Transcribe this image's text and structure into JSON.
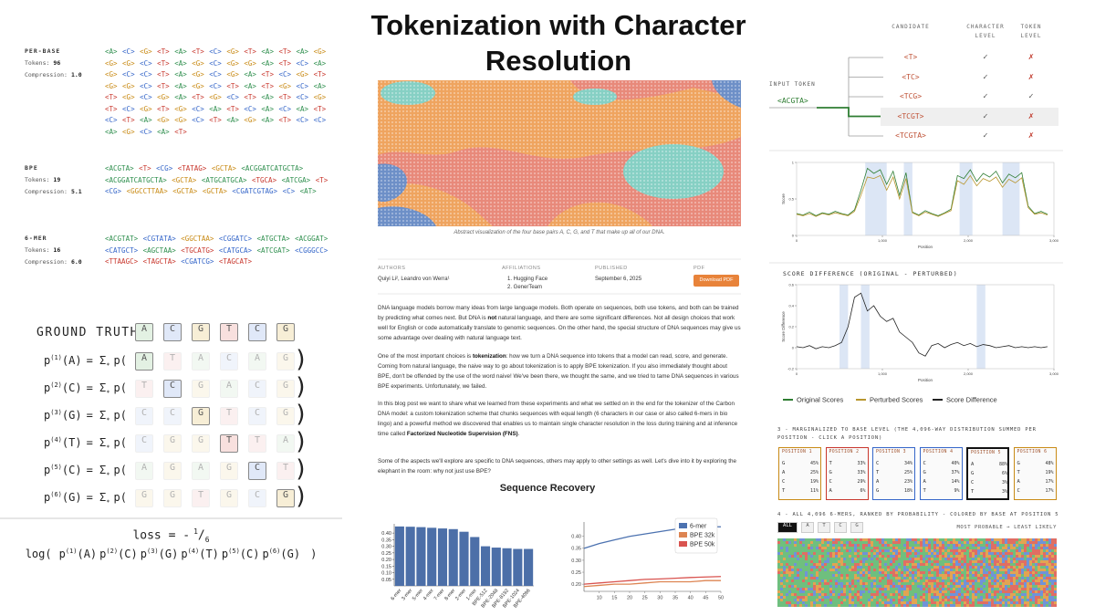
{
  "left": {
    "schemes": [
      {
        "name": "PER-BASE",
        "tokens_label": "Tokens:",
        "tokens": "96",
        "compression_label": "Compression:",
        "compression": "1.0",
        "rows": [
          [
            "<A>",
            "<C>",
            "<G>",
            "<T>",
            "<A>",
            "<T>",
            "<C>",
            "<G>",
            "<T>",
            "<A>",
            "<T>",
            "<A>",
            "<G>"
          ],
          [
            "<G>",
            "<G>",
            "<C>",
            "<T>",
            "<A>",
            "<G>",
            "<C>",
            "<G>",
            "<G>",
            "<A>",
            "<T>",
            "<C>",
            "<A>"
          ],
          [
            "<G>",
            "<C>",
            "<C>",
            "<T>",
            "<A>",
            "<G>",
            "<C>",
            "<G>",
            "<A>",
            "<T>",
            "<C>",
            "<G>",
            "<T>"
          ],
          [
            "<G>",
            "<G>",
            "<C>",
            "<T>",
            "<A>",
            "<G>",
            "<C>",
            "<T>",
            "<A>",
            "<T>",
            "<G>",
            "<C>",
            "<A>"
          ],
          [
            "<T>",
            "<G>",
            "<C>",
            "<G>",
            "<A>",
            "<T>",
            "<G>",
            "<C>",
            "<T>",
            "<A>",
            "<T>",
            "<C>",
            "<G>"
          ],
          [
            "<T>",
            "<C>",
            "<G>",
            "<T>",
            "<G>",
            "<C>",
            "<A>",
            "<T>",
            "<C>",
            "<A>",
            "<C>",
            "<A>",
            "<T>"
          ],
          [
            "<C>",
            "<T>",
            "<A>",
            "<G>",
            "<G>",
            "<C>",
            "<T>",
            "<A>",
            "<G>",
            "<A>",
            "<T>",
            "<C>",
            "<C>"
          ],
          [
            "<A>",
            "<G>",
            "<C>",
            "<A>",
            "<T>"
          ]
        ]
      },
      {
        "name": "BPE",
        "tokens_label": "Tokens:",
        "tokens": "19",
        "compression_label": "Compression:",
        "compression": "5.1",
        "rows": [
          [
            "<ACGTA>",
            "<T>",
            "<CG>",
            "<TATAG>",
            "<GCTA>",
            "<ACGGATCATGCTA>"
          ],
          [
            "<ACGGATCATGCTA>",
            "<GCTA>",
            "<ATGCATGCA>",
            "<TGCA>",
            "<ATCGA>",
            "<T>"
          ],
          [
            "<CG>",
            "<GGCCTTAA>",
            "<GCTA>",
            "<GCTA>",
            "<CGATCGTAG>",
            "<C>",
            "<AT>"
          ]
        ]
      },
      {
        "name": "6-MER",
        "tokens_label": "Tokens:",
        "tokens": "16",
        "compression_label": "Compression:",
        "compression": "6.0",
        "rows": [
          [
            "<ACGTAT>",
            "<CGTATA>",
            "<GGCTAA>",
            "<CGGATC>",
            "<ATGCTA>",
            "<ACGGAT>"
          ],
          [
            "<CATGCT>",
            "<AGCTAA>",
            "<TGCATG>",
            "<CATGCA>",
            "<ATCGAT>",
            "<CGGGCC>"
          ],
          [
            "<TTAAGC>",
            "<TAGCTA>",
            "<CGATCG>",
            "<TAGCAT>"
          ]
        ]
      }
    ],
    "ground_truth": {
      "label": "GROUND TRUTH:",
      "bases": [
        "A",
        "C",
        "G",
        "T",
        "C",
        "G"
      ]
    },
    "rows": [
      {
        "p": "p",
        "sup": "(1)",
        "arg": "(A)",
        "sum": "= Σ",
        "sub": "*",
        "open": "p(",
        "tokens": [
          "A",
          "T",
          "A",
          "C",
          "A",
          "G"
        ],
        "highlight": 0,
        "close": ")"
      },
      {
        "p": "p",
        "sup": "(2)",
        "arg": "(C)",
        "sum": "= Σ",
        "sub": "*",
        "open": "p(",
        "tokens": [
          "T",
          "C",
          "G",
          "A",
          "C",
          "G"
        ],
        "highlight": 1,
        "close": ")"
      },
      {
        "p": "p",
        "sup": "(3)",
        "arg": "(G)",
        "sum": "= Σ",
        "sub": "*",
        "open": "p(",
        "tokens": [
          "C",
          "C",
          "G",
          "T",
          "C",
          "G"
        ],
        "highlight": 2,
        "close": ")"
      },
      {
        "p": "p",
        "sup": "(4)",
        "arg": "(T)",
        "sum": "= Σ",
        "sub": "*",
        "open": "p(",
        "tokens": [
          "C",
          "G",
          "G",
          "T",
          "T",
          "A"
        ],
        "highlight": 3,
        "close": ")"
      },
      {
        "p": "p",
        "sup": "(5)",
        "arg": "(C)",
        "sum": "= Σ",
        "sub": "*",
        "open": "p(",
        "tokens": [
          "A",
          "G",
          "A",
          "G",
          "C",
          "T"
        ],
        "highlight": 4,
        "close": ")"
      },
      {
        "p": "p",
        "sup": "(6)",
        "arg": "(G)",
        "sum": "= Σ",
        "sub": "*",
        "open": "p(",
        "tokens": [
          "G",
          "G",
          "T",
          "G",
          "C",
          "G"
        ],
        "highlight": 5,
        "close": ")"
      }
    ],
    "loss": {
      "label": "loss = -",
      "num": "1",
      "bar": "/",
      "den": "6",
      "log_open": "log(",
      "terms": [
        {
          "p": "p",
          "sup": "(1)",
          "arg": "(A)"
        },
        {
          "p": "p",
          "sup": "(2)",
          "arg": "(C)"
        },
        {
          "p": "p",
          "sup": "(3)",
          "arg": "(G)"
        },
        {
          "p": "p",
          "sup": "(4)",
          "arg": "(T)"
        },
        {
          "p": "p",
          "sup": "(5)",
          "arg": "(C)"
        },
        {
          "p": "p",
          "sup": "(6)",
          "arg": "(G)"
        }
      ],
      "log_close": ")"
    }
  },
  "article": {
    "title": "Tokenization with Character Resolution",
    "caption": "Abstract visualization of the four base pairs A, C, G, and T that make up all of our DNA.",
    "authors_label": "AUTHORS",
    "authors": "Quiyi Li², Leandro von Werra¹",
    "affiliations_label": "AFFILIATIONS",
    "affiliations": [
      "1. Hugging Face",
      "2. GenerTeam"
    ],
    "published_label": "PUBLISHED",
    "published": "September 6, 2025",
    "pdf_label": "PDF",
    "pdf_button": "Download PDF",
    "paragraphs": [
      [
        {
          "text": "DNA language models borrow many ideas from large language models. Both operate on sequences, both use tokens, and both can be trained by predicting what comes next. But DNA is "
        },
        {
          "text": "not",
          "bold": true
        },
        {
          "text": " natural language, and there are some significant differences. Not all design choices that work well for English or code automatically translate to genomic sequences. On the other hand, the special structure of DNA sequences may give us some advantage over dealing with natural language text."
        }
      ],
      [
        {
          "text": "One of the most important choices is "
        },
        {
          "text": "tokenization",
          "bold": true
        },
        {
          "text": ": how we turn a DNA sequence into tokens that a model can read, score, and generate. Coming from natural language, the naive way to go about tokenization is to apply BPE tokenization. If you also immediately thought about BPE, don't be offended by the use of the word naive! We've been there, we thought the same, and we tried to tame DNA sequences in various BPE experiments. Unfortunately, we failed."
        }
      ],
      [
        {
          "text": "In this blog post we want to share what we learned from these experiments and what we settled on in the end for the tokenizer of the Carbon DNA model: a custom tokenization scheme that chunks sequences with equal length (6 characters in our case or also called 6-mers in bio lingo) and a powerful method we discovered that enables us to maintain single character resolution in the loss during training and at inference time called "
        },
        {
          "text": "Factorized Nucleotide Supervision (FNS)",
          "bold": true
        },
        {
          "text": "."
        }
      ],
      [
        {
          "text": "Some of the aspects we'll explore are specific to DNA sequences, others may apply to other settings as well. Let's dive into it by exploring the elephant in the room: why not just use BPE?"
        }
      ]
    ]
  },
  "chart_data": [
    {
      "type": "bar",
      "title": "Sequence Recovery",
      "categories": [
        "6-mer",
        "3-mer",
        "5-mer",
        "4-mer",
        "7-mer",
        "8-mer",
        "2-mer",
        "1-mer",
        "BPE-512",
        "BPE-2048",
        "BPE-8192",
        "BPE-1024",
        "BPE-4096"
      ],
      "values": [
        0.45,
        0.448,
        0.445,
        0.44,
        0.435,
        0.43,
        0.41,
        0.37,
        0.3,
        0.29,
        0.285,
        0.28,
        0.28
      ],
      "color": "#4c6fa8",
      "ylim": [
        0,
        0.47
      ],
      "yticks": [
        0.05,
        {
          "value": 0.1,
          "label": "0.10"
        },
        0.15,
        {
          "value": 0.2,
          "label": "0.20"
        },
        0.25,
        {
          "value": 0.3,
          "label": "0.30"
        },
        0.35,
        {
          "value": 0.4,
          "label": "0.40"
        }
      ]
    },
    {
      "type": "line",
      "x": [
        5,
        10,
        15,
        20,
        25,
        30,
        35,
        40,
        45,
        50
      ],
      "xlim": [
        5,
        50
      ],
      "xticks": [
        10,
        15,
        20,
        25,
        30,
        35,
        40,
        45,
        50
      ],
      "ylim": [
        0.17,
        0.46
      ],
      "yticks": [
        {
          "value": 0.2,
          "label": "0.20"
        },
        0.25,
        {
          "value": 0.3,
          "label": "0.30"
        },
        0.35,
        {
          "value": 0.4,
          "label": "0.40"
        }
      ],
      "legend": "upper right",
      "series": [
        {
          "name": "6-mer",
          "color": "#4c72b0",
          "values": [
            0.35,
            0.37,
            0.385,
            0.4,
            0.41,
            0.42,
            0.43,
            0.435,
            0.44,
            0.44
          ]
        },
        {
          "name": "BPE 32k",
          "color": "#dd8452",
          "values": [
            0.19,
            0.195,
            0.2,
            0.2,
            0.205,
            0.21,
            0.21,
            0.21,
            0.215,
            0.215
          ]
        },
        {
          "name": "BPE 50k",
          "color": "#d9534f",
          "values": [
            0.2,
            0.205,
            0.21,
            0.215,
            0.22,
            0.222,
            0.225,
            0.228,
            0.23,
            0.232
          ]
        }
      ]
    },
    {
      "type": "line",
      "x_label": "Position",
      "y_label": "Score",
      "x": [
        0,
        75,
        150,
        225,
        300,
        375,
        450,
        525,
        600,
        675,
        750,
        825,
        900,
        975,
        1050,
        1125,
        1200,
        1275,
        1350,
        1425,
        1500,
        1575,
        1650,
        1725,
        1800,
        1875,
        1950,
        2025,
        2100,
        2175,
        2250,
        2325,
        2400,
        2475,
        2550,
        2625,
        2700,
        2775,
        2850,
        2925
      ],
      "xlim": [
        0,
        3000
      ],
      "xticks": [
        0,
        {
          "value": 1000,
          "label": "1,000"
        },
        {
          "value": 2000,
          "label": "2,000"
        },
        {
          "value": 3000,
          "label": "3,000"
        }
      ],
      "ylim": [
        0,
        1
      ],
      "yticks": [
        0,
        0.5,
        1
      ],
      "shaded": [
        [
          800,
          1050
        ],
        [
          1250,
          1350
        ],
        [
          1900,
          2050
        ],
        [
          2400,
          2600
        ]
      ],
      "shade_color": "#dce6f5",
      "series": [
        {
          "name": "Original Scores",
          "color": "#2e7d32",
          "values": [
            0.3,
            0.28,
            0.32,
            0.27,
            0.31,
            0.29,
            0.33,
            0.3,
            0.28,
            0.35,
            0.62,
            0.92,
            0.85,
            0.9,
            0.7,
            0.88,
            0.55,
            0.86,
            0.32,
            0.28,
            0.34,
            0.3,
            0.27,
            0.31,
            0.36,
            0.82,
            0.78,
            0.9,
            0.74,
            0.85,
            0.8,
            0.88,
            0.72,
            0.84,
            0.79,
            0.86,
            0.4,
            0.3,
            0.33,
            0.29
          ]
        },
        {
          "name": "Perturbed Scores",
          "color": "#b8962e",
          "values": [
            0.29,
            0.27,
            0.3,
            0.26,
            0.3,
            0.28,
            0.31,
            0.29,
            0.27,
            0.33,
            0.55,
            0.8,
            0.78,
            0.82,
            0.62,
            0.8,
            0.5,
            0.78,
            0.31,
            0.27,
            0.32,
            0.29,
            0.26,
            0.3,
            0.34,
            0.75,
            0.7,
            0.82,
            0.68,
            0.78,
            0.74,
            0.8,
            0.66,
            0.77,
            0.72,
            0.79,
            0.38,
            0.29,
            0.31,
            0.28
          ]
        }
      ]
    },
    {
      "type": "line",
      "title": "SCORE DIFFERENCE (ORIGINAL - PERTURBED)",
      "x_label": "Position",
      "y_label": "Score Difference",
      "x": [
        0,
        75,
        150,
        225,
        300,
        375,
        450,
        525,
        600,
        675,
        750,
        825,
        900,
        975,
        1050,
        1125,
        1200,
        1275,
        1350,
        1425,
        1500,
        1575,
        1650,
        1725,
        1800,
        1875,
        1950,
        2025,
        2100,
        2175,
        2250,
        2325,
        2400,
        2475,
        2550,
        2625,
        2700,
        2775,
        2850,
        2925
      ],
      "xlim": [
        0,
        3000
      ],
      "xticks": [
        0,
        {
          "value": 1000,
          "label": "1,000"
        },
        {
          "value": 2000,
          "label": "2,000"
        },
        {
          "value": 3000,
          "label": "3,000"
        }
      ],
      "ylim": [
        -0.2,
        0.6
      ],
      "yticks": [
        -0.2,
        0,
        0.2,
        0.4,
        0.6
      ],
      "shaded": [
        [
          500,
          600
        ],
        [
          750,
          850
        ],
        [
          2100,
          2200
        ]
      ],
      "shade_color": "#dce6f5",
      "series": [
        {
          "name": "Score Difference",
          "color": "#222222",
          "values": [
            0.01,
            0,
            0.02,
            -0.01,
            0.01,
            0,
            0.02,
            0.05,
            0.2,
            0.48,
            0.52,
            0.35,
            0.4,
            0.3,
            0.25,
            0.28,
            0.15,
            0.1,
            0.05,
            -0.05,
            -0.08,
            0.02,
            0.04,
            0,
            0.03,
            0.05,
            0.02,
            0.04,
            0.01,
            0.03,
            0.02,
            0,
            0.01,
            0.02,
            0,
            0.01,
            0,
            0.01,
            0,
            0.01
          ]
        }
      ]
    }
  ],
  "candidates": {
    "input_label": "INPUT TOKEN",
    "input": "<ACGTA>",
    "headers": [
      "CANDIDATE",
      "CHARACTER LEVEL",
      "TOKEN LEVEL"
    ],
    "rows": [
      {
        "candidate": "<T>",
        "character": "✓",
        "token": "✗"
      },
      {
        "candidate": "<TC>",
        "character": "✓",
        "token": "✗"
      },
      {
        "candidate": "<TCG>",
        "character": "✓",
        "token": "✓"
      },
      {
        "candidate": "<TCGT>",
        "character": "✓",
        "token": "✗"
      },
      {
        "candidate": "<TCGTA>",
        "character": "✓",
        "token": "✗"
      }
    ],
    "highlight": 3
  },
  "marginal": {
    "title": "3 - MARGINALIZED TO BASE LEVEL (THE 4,096-WAY DISTRIBUTION SUMMED PER POSITION - CLICK A POSITION)",
    "selected": 4,
    "boxes": [
      {
        "title": "POSITION 1",
        "bases": [
          "G",
          "A",
          "C",
          "T"
        ],
        "values": [
          45,
          25,
          19,
          11
        ],
        "value_labels": [
          "45%",
          "25%",
          "19%",
          "11%"
        ]
      },
      {
        "title": "POSITION 2",
        "bases": [
          "T",
          "G",
          "C",
          "A"
        ],
        "values": [
          33,
          33,
          29,
          6
        ],
        "value_labels": [
          "33%",
          "33%",
          "29%",
          "6%"
        ]
      },
      {
        "title": "POSITION 3",
        "bases": [
          "C",
          "T",
          "A",
          "G"
        ],
        "values": [
          34,
          25,
          23,
          18
        ],
        "value_labels": [
          "34%",
          "25%",
          "23%",
          "18%"
        ]
      },
      {
        "title": "POSITION 4",
        "bases": [
          "C",
          "G",
          "A",
          "T"
        ],
        "values": [
          40,
          37,
          14,
          9
        ],
        "value_labels": [
          "40%",
          "37%",
          "14%",
          "9%"
        ]
      },
      {
        "title": "POSITION 5",
        "bases": [
          "A",
          "G",
          "C",
          "T"
        ],
        "values": [
          88,
          6,
          3,
          3
        ],
        "value_labels": [
          "88%",
          "6%",
          "3%",
          "3%"
        ]
      },
      {
        "title": "POSITION 6",
        "bases": [
          "G",
          "T",
          "A",
          "C"
        ],
        "values": [
          48,
          19,
          17,
          17
        ],
        "value_labels": [
          "48%",
          "19%",
          "17%",
          "17%"
        ]
      }
    ]
  },
  "ranking": {
    "title": "4 - ALL 4,096 6-MERS, RANKED BY PROBABILITY - COLORED BY BASE AT POSITION 5",
    "filters": [
      "ALL",
      "A",
      "T",
      "C",
      "G"
    ],
    "active": 0,
    "scale_label": "MOST PROBABLE → LEAST LIKELY"
  }
}
